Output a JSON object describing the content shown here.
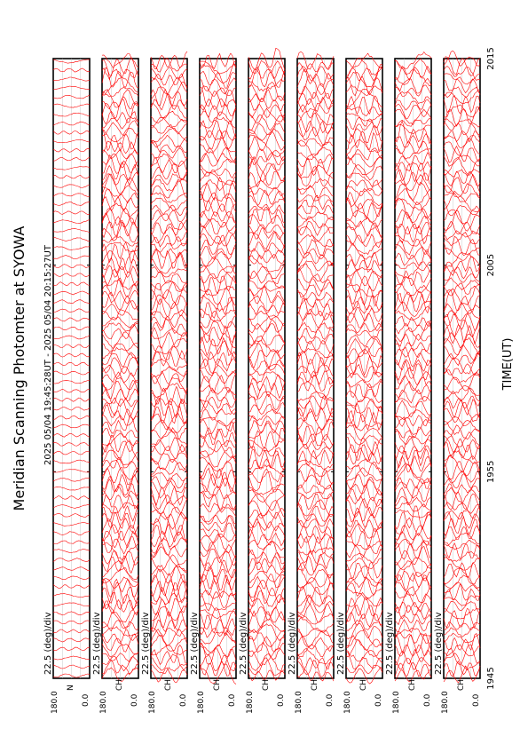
{
  "page": {
    "title": "Meridian Scanning Photomter at SYOWA",
    "time_range": "2025 05/04 19:45:28UT - 2025 05/04 20:15:27UT",
    "xlabel": "TIME(UT)"
  },
  "chart_data": {
    "type": "line",
    "orientation": "rotated-90-ccw",
    "x_ticks": [
      "1945",
      "1955",
      "2005",
      "2015"
    ],
    "x_range_minutes": [
      0,
      30
    ],
    "line_color": "#ff0000",
    "panels": [
      {
        "scale": "22.5 (deg)/div",
        "ymax": "180.0",
        "ymin": "0.0",
        "channel": "N"
      },
      {
        "scale": "22.5 (deg)/div",
        "ymax": "180.0",
        "ymin": "0.0",
        "channel": "CH"
      },
      {
        "scale": "22.5 (deg)/div",
        "ymax": "180.0",
        "ymin": "0.0",
        "channel": "CH"
      },
      {
        "scale": "22.5 (deg)/div",
        "ymax": "180.0",
        "ymin": "0.0",
        "channel": "CH"
      },
      {
        "scale": "22.5 (deg)/div",
        "ymax": "180.0",
        "ymin": "0.0",
        "channel": "CH"
      },
      {
        "scale": "22.5 (deg)/div",
        "ymax": "180.0",
        "ymin": "0.0",
        "channel": "CH"
      },
      {
        "scale": "22.5 (deg)/div",
        "ymax": "180.0",
        "ymin": "0.0",
        "channel": "CH"
      },
      {
        "scale": "22.5 (deg)/div",
        "ymax": "180.0",
        "ymin": "0.0",
        "channel": "CH"
      },
      {
        "scale": "22.5 (deg)/div",
        "ymax": "180.0",
        "ymin": "0.0",
        "channel": "CH"
      }
    ]
  }
}
